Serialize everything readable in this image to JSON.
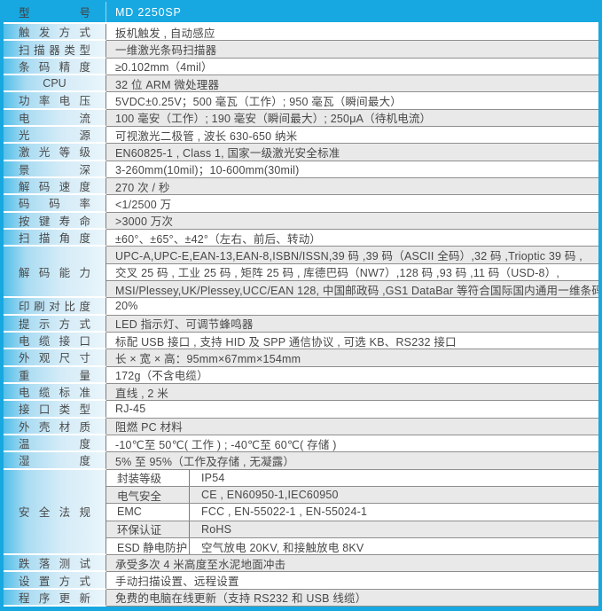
{
  "colors": {
    "accent_cyan": "#18a8e1",
    "row_white": "#ffffff",
    "row_gray": "#e9e9e9",
    "label_gradient_start": "#52bfe9",
    "label_gradient_end": "#eaf5fb",
    "separator_gray": "#8f8f8f",
    "text_dark": "#4a4a4a",
    "header_text": "#ffffff"
  },
  "table": {
    "header": {
      "label": "型 号",
      "value": "MD 2250SP"
    },
    "rows": [
      {
        "label": "触 发 方 式",
        "value": "扳机触发 , 自动感应"
      },
      {
        "label": "扫 描 器 类 型",
        "value": "一维激光条码扫描器"
      },
      {
        "label": "条 码 精 度",
        "value": "≥0.102mm（4mil）"
      },
      {
        "label": "CPU",
        "value": "32 位 ARM 微处理器",
        "label_align": "center"
      },
      {
        "label": "功 率 电 压",
        "value": "5VDC±0.25V；500 毫瓦（工作）; 950 毫瓦（瞬间最大）"
      },
      {
        "label": "电 流",
        "value": "100 毫安（工作）; 190 毫安（瞬间最大）; 250μA（待机电流）"
      },
      {
        "label": "光 源",
        "value": "可视激光二极管 , 波长 630-650 纳米"
      },
      {
        "label": "激 光 等 级",
        "value": "EN60825-1 , Class 1, 国家一级激光安全标准"
      },
      {
        "label": "景 深",
        "value": "3-260mm(10mil)；10-600mm(30mil)"
      },
      {
        "label": "解 码 速 度",
        "value": "270 次 / 秒"
      },
      {
        "label": "码 码 率",
        "value": "<1/2500 万"
      },
      {
        "label": "按 键 寿 命",
        "value": ">3000 万次"
      },
      {
        "label": "扫 描 角 度",
        "value": "±60°、±65°、±42°（左右、前后、转动）"
      },
      {
        "label": "解 码 能 力",
        "lines": [
          "UPC-A,UPC-E,EAN-13,EAN-8,ISBN/ISSN,39 码 ,39 码（ASCII 全码）,32 码 ,Trioptic 39 码 ,",
          "交叉 25 码 , 工业 25 码 , 矩阵 25 码 , 库德巴码（NW7）,128 码 ,93 码 ,11 码（USD-8）,",
          "MSI/Plessey,UK/Plessey,UCC/EAN 128, 中国邮政码 ,GS1 DataBar 等符合国际国内通用一维条码 ."
        ]
      },
      {
        "label": "印 刷 对 比 度",
        "value": "20%"
      },
      {
        "label": "提 示 方 式",
        "value": "LED 指示灯、可调节蜂鸣器"
      },
      {
        "label": "电 缆 接 口",
        "value": "标配 USB 接口 , 支持 HID 及 SPP 通信协议 , 可选 KB、RS232 接口"
      },
      {
        "label": "外 观 尺 寸",
        "value": "长 × 宽 × 高：95mm×67mm×154mm"
      },
      {
        "label": "重 量",
        "value": "172g（不含电缆）"
      },
      {
        "label": "电 缆 标 准",
        "value": "直线 , 2 米"
      },
      {
        "label": "接 口 类 型",
        "value": "RJ-45"
      },
      {
        "label": "外 壳 材 质",
        "value": "阻燃 PC 材料"
      },
      {
        "label": "温 度",
        "value": "-10℃至 50℃( 工作 ) ; -40℃至 60℃( 存储 )"
      },
      {
        "label": "湿 度",
        "value": "5% 至 95%（工作及存储 , 无凝露）"
      },
      {
        "label": "安 全 法 规",
        "sub_rows": [
          {
            "name": "封装等级",
            "value": "IP54"
          },
          {
            "name": "电气安全",
            "value": "CE , EN60950-1,IEC60950"
          },
          {
            "name": "EMC",
            "value": "FCC , EN-55022-1 , EN-55024-1"
          },
          {
            "name": "环保认证",
            "value": "RoHS"
          },
          {
            "name": "ESD 静电防护",
            "value": "空气放电 20KV, 和接触放电 8KV"
          }
        ]
      },
      {
        "label": "跌 落 测 试",
        "value": "承受多次 4 米高度至水泥地面冲击"
      },
      {
        "label": "设 置 方 式",
        "value": "手动扫描设置、远程设置"
      },
      {
        "label": "程 序 更 新",
        "value": "免费的电脑在线更新（支持 RS232 和 USB 线缆）"
      }
    ]
  }
}
